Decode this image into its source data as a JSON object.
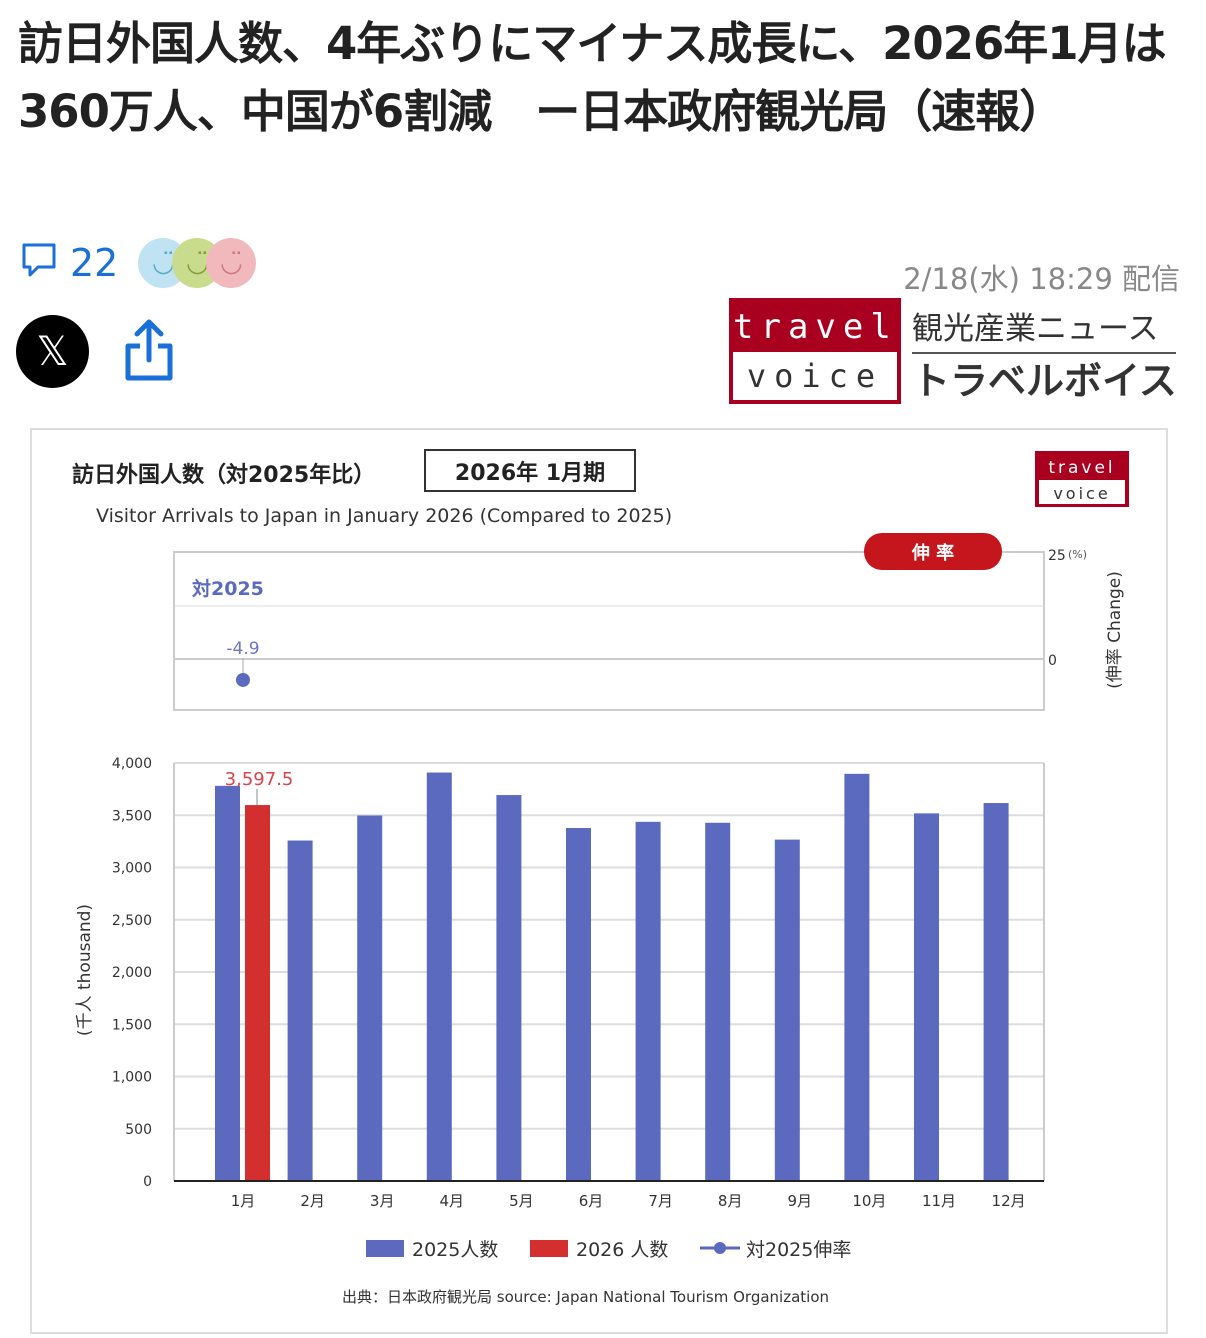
{
  "article": {
    "headline": "訪日外国人数、4年ぶりにマイナス成長に、2026年1月は360万人、中国が6割減　ー日本政府観光局（速報）",
    "comment_count": "22",
    "date": "2/18(水) 18:29 配信",
    "icons": [
      "comment-icon",
      "reaction-faces",
      "x-logo-icon",
      "share-icon"
    ],
    "reaction_colors": [
      "#bfe3f2",
      "#c9dc8e",
      "#f2b9bd"
    ]
  },
  "publisher": {
    "logo_top": "travel",
    "logo_bottom": "voice",
    "tagline": "観光産業ニュース",
    "name": "トラベルボイス",
    "color": "#a8001e"
  },
  "chart_data": {
    "type": "bar",
    "title_ja": "訪日外国人数（対2025年比）",
    "period_box": "2026年 1月期",
    "title_en": "Visitor Arrivals to Japan in January 2026 (Compared to  2025)",
    "logo_top": "travel",
    "logo_bottom": "voice",
    "categories": [
      "1月",
      "2月",
      "3月",
      "4月",
      "5月",
      "6月",
      "7月",
      "8月",
      "9月",
      "10月",
      "11月",
      "12月"
    ],
    "series": [
      {
        "name": "2025人数",
        "color": "#5b6abf",
        "values": [
          3781.6,
          3258.1,
          3497.6,
          3908.8,
          3693.3,
          3377.8,
          3437.0,
          3428.0,
          3266.8,
          3896.3,
          3518.0,
          3617.0
        ]
      },
      {
        "name": "2026 人数",
        "color": "#d32f2f",
        "values": [
          3597.5,
          null,
          null,
          null,
          null,
          null,
          null,
          null,
          null,
          null,
          null,
          null
        ]
      }
    ],
    "data_label": "3,597.5",
    "ylabel": "(千人 thousand)",
    "ylim": [
      0,
      4000
    ],
    "yticks": [
      "0",
      "500",
      "1,000",
      "1,500",
      "2,000",
      "2,500",
      "3,000",
      "3,500",
      "4,000"
    ],
    "grid": true,
    "rate_panel": {
      "badge": "伸 率",
      "label": "対2025",
      "series_name": "対2025伸率",
      "values": [
        -4.9
      ],
      "value_label": "-4.9",
      "ylabel": "(伸率 Change)",
      "yticks": [
        "25",
        "0"
      ],
      "unit": "(%)",
      "ylim": [
        -10,
        25
      ],
      "color": "#5b6abf"
    },
    "legend_position": "bottom",
    "source": "出典：日本政府観光局  source: Japan National Tourism Organization"
  }
}
